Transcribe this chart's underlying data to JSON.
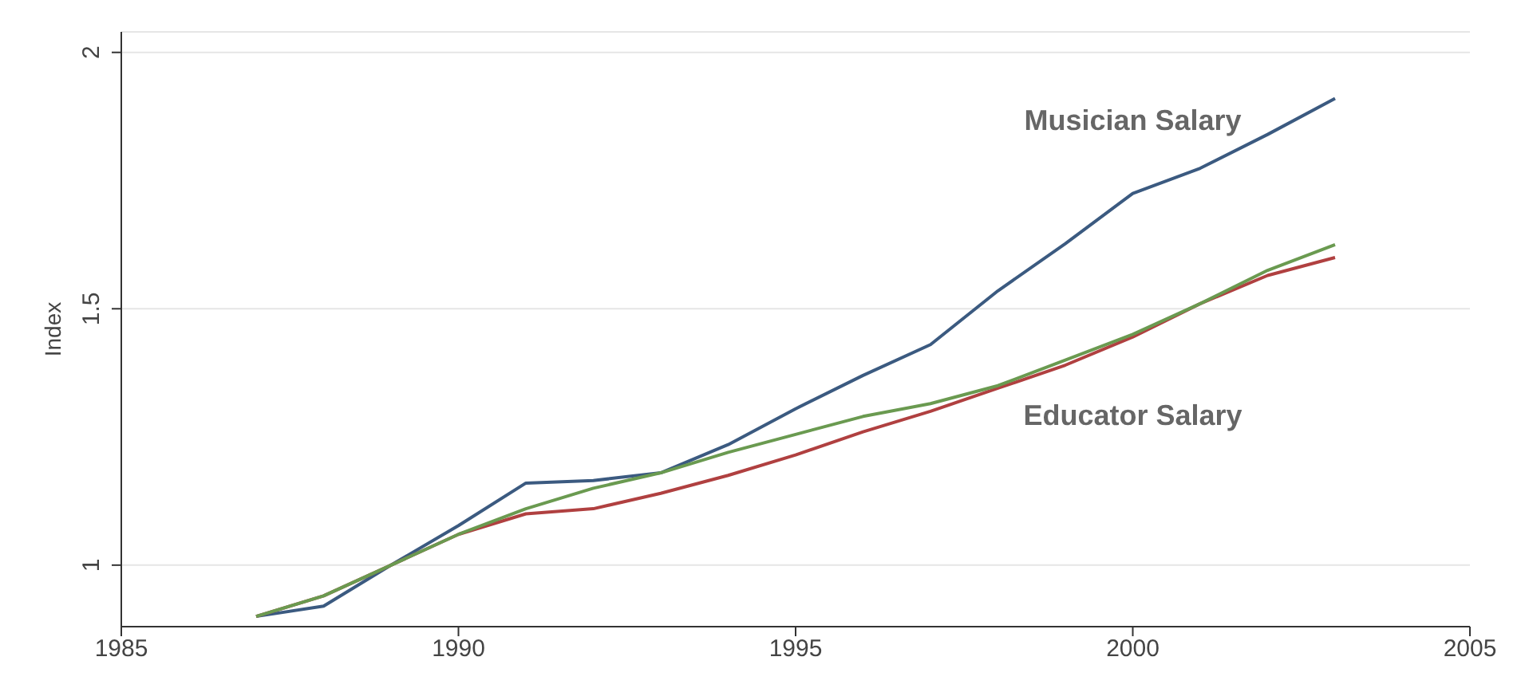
{
  "chart_data": {
    "type": "line",
    "ylabel": "Index",
    "x": [
      1987,
      1988,
      1989,
      1990,
      1991,
      1992,
      1993,
      1994,
      1995,
      1996,
      1997,
      1998,
      1999,
      2000,
      2001,
      2002,
      2003
    ],
    "series": [
      {
        "name": "Musician Salary",
        "color": "#3b5a80",
        "values": [
          0.9,
          0.92,
          1.0,
          1.077,
          1.16,
          1.165,
          1.18,
          1.235,
          1.305,
          1.37,
          1.43,
          1.535,
          1.627,
          1.725,
          1.774,
          1.84,
          1.91
        ]
      },
      {
        "name": "Educator Salary",
        "color": "#b04040",
        "values": [
          0.9,
          0.94,
          1.0,
          1.06,
          1.1,
          1.11,
          1.14,
          1.175,
          1.215,
          1.26,
          1.3,
          1.345,
          1.39,
          1.445,
          1.51,
          1.565,
          1.6
        ]
      },
      {
        "color": "#6a9a50",
        "values": [
          0.9,
          0.94,
          1.0,
          1.06,
          1.11,
          1.15,
          1.18,
          1.22,
          1.255,
          1.29,
          1.315,
          1.35,
          1.4,
          1.45,
          1.51,
          1.575,
          1.625
        ]
      }
    ],
    "xlim": [
      1985,
      2005
    ],
    "xticks": [
      1985,
      1990,
      1995,
      2000,
      2005
    ],
    "ylim": [
      0.88,
      2.04
    ],
    "yticks": [
      1,
      1.5,
      2
    ],
    "grid": "y",
    "legend": false,
    "marker": "none",
    "line_style": "solid"
  }
}
